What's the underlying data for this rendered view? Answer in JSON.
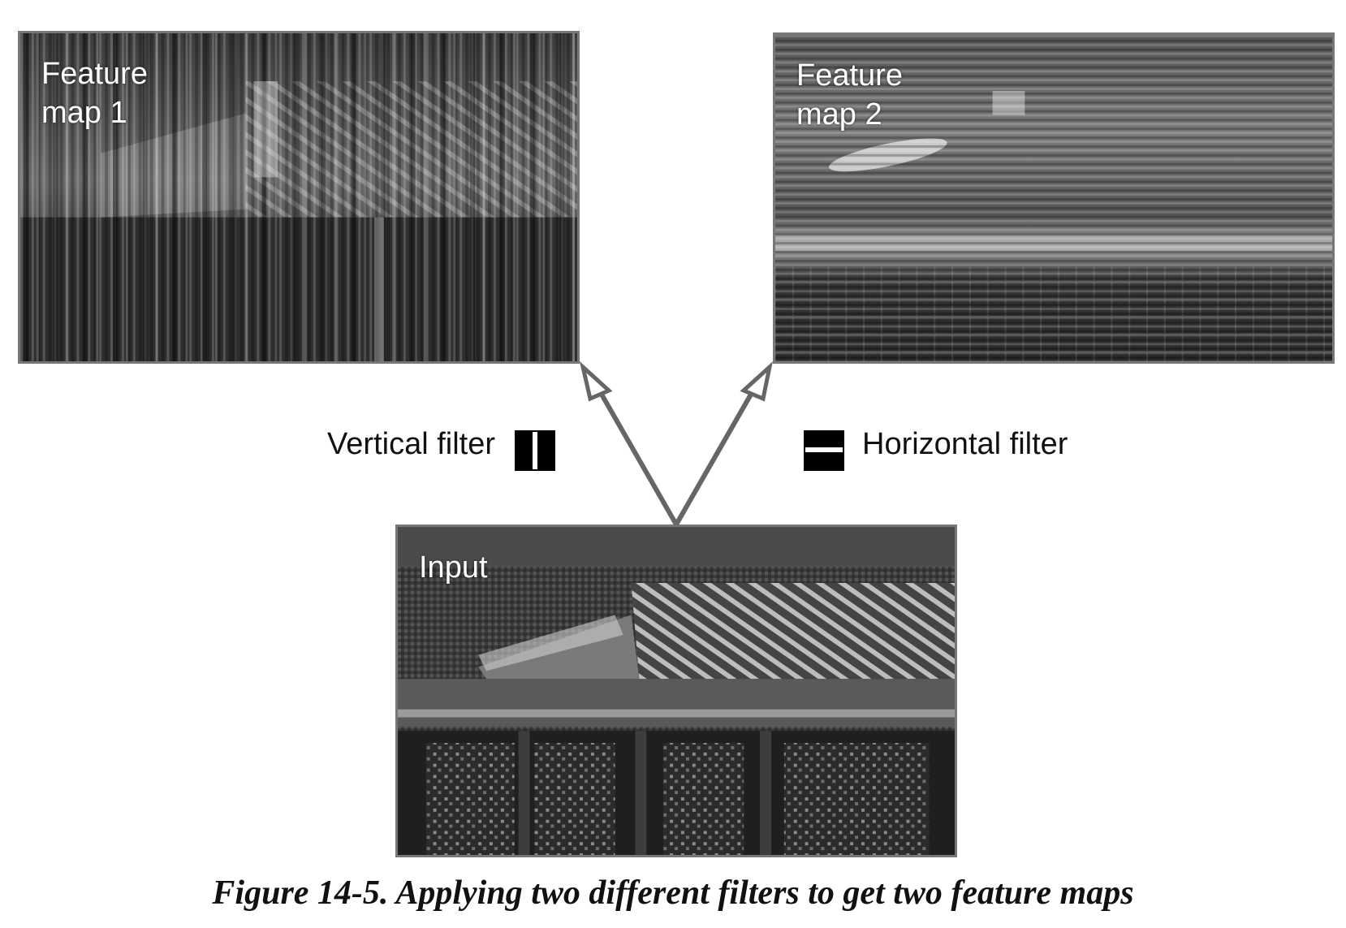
{
  "panels": {
    "feature_map_1": {
      "label": "Feature\nmap 1"
    },
    "feature_map_2": {
      "label": "Feature\nmap 2"
    },
    "input": {
      "label": "Input"
    }
  },
  "filters": {
    "vertical": {
      "label": "Vertical filter",
      "icon": "vertical-filter-icon"
    },
    "horizontal": {
      "label": "Horizontal filter",
      "icon": "horizontal-filter-icon"
    }
  },
  "caption": "Figure 14-5. Applying two different filters to get two feature maps",
  "colors": {
    "arrow": "#666666",
    "panel_border": "#777777"
  }
}
